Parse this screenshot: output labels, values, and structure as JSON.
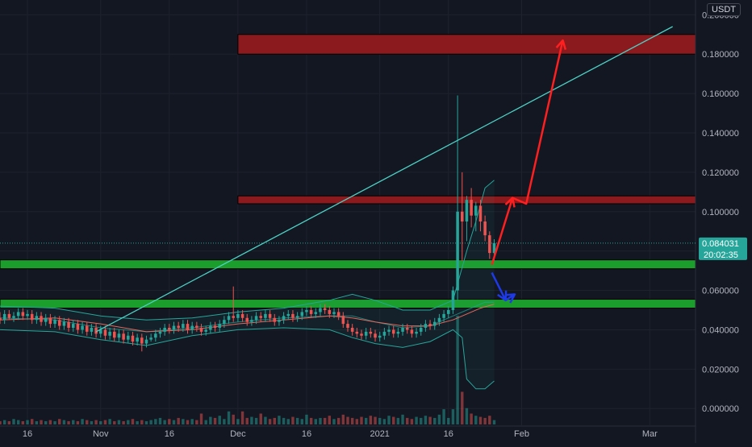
{
  "price_scale": {
    "currency": "USDT",
    "last_price": "0.084031",
    "countdown": "20:02:35",
    "last_price_bg": "#26a69a"
  },
  "colors": {
    "background": "#131722",
    "grid": "#1e222d",
    "axis_text": "#b2b5be",
    "up": "#26a69a",
    "down": "#ef5350",
    "resistance_zone": "#8b1a1f",
    "support_zone": "#1b9e2c",
    "trendline": "#4dd0c4",
    "bollinger": "#26a69a",
    "moving_average": "#e4685d",
    "forecast_up": "#ff1f1f",
    "forecast_down": "#1e3ae8"
  },
  "chart_data": {
    "type": "candlestick",
    "y_axis": {
      "ticks": [
        "0.200000",
        "0.180000",
        "0.160000",
        "0.140000",
        "0.120000",
        "0.100000",
        "0.080000",
        "0.060000",
        "0.040000",
        "0.020000",
        "0.000000"
      ],
      "tick_values": [
        0.2,
        0.18,
        0.16,
        0.14,
        0.12,
        0.1,
        0.08,
        0.06,
        0.04,
        0.02,
        0.0
      ],
      "range": [
        -0.0085,
        0.2075
      ]
    },
    "x_axis": {
      "ticks": [
        "16",
        "Nov",
        "16",
        "Dec",
        "16",
        "2021",
        "16",
        "Feb",
        "Mar"
      ],
      "tick_days": [
        -16,
        0,
        15,
        30,
        45,
        61,
        76,
        92,
        120
      ],
      "range_days": [
        -22,
        130
      ]
    },
    "grid": true,
    "candles": {
      "first_day": -22,
      "open": [
        0.046,
        0.045,
        0.048,
        0.046,
        0.047,
        0.049,
        0.047,
        0.048,
        0.045,
        0.047,
        0.044,
        0.046,
        0.043,
        0.045,
        0.042,
        0.044,
        0.041,
        0.043,
        0.04,
        0.042,
        0.039,
        0.041,
        0.038,
        0.04,
        0.037,
        0.039,
        0.036,
        0.038,
        0.035,
        0.037,
        0.034,
        0.036,
        0.033,
        0.035,
        0.036,
        0.038,
        0.039,
        0.041,
        0.04,
        0.042,
        0.041,
        0.043,
        0.04,
        0.042,
        0.041,
        0.039,
        0.04,
        0.042,
        0.041,
        0.043,
        0.045,
        0.047,
        0.046,
        0.048,
        0.046,
        0.044,
        0.045,
        0.047,
        0.046,
        0.048,
        0.046,
        0.044,
        0.045,
        0.047,
        0.048,
        0.046,
        0.047,
        0.049,
        0.05,
        0.048,
        0.049,
        0.051,
        0.05,
        0.048,
        0.049,
        0.047,
        0.043,
        0.041,
        0.039,
        0.038,
        0.037,
        0.039,
        0.038,
        0.036,
        0.037,
        0.039,
        0.04,
        0.038,
        0.039,
        0.041,
        0.04,
        0.038,
        0.039,
        0.041,
        0.043,
        0.042,
        0.044,
        0.046,
        0.048,
        0.05,
        0.06,
        0.1,
        0.095,
        0.106,
        0.098,
        0.103,
        0.095,
        0.088,
        0.079
      ],
      "close": [
        0.045,
        0.048,
        0.046,
        0.047,
        0.049,
        0.047,
        0.048,
        0.045,
        0.047,
        0.044,
        0.046,
        0.043,
        0.045,
        0.042,
        0.044,
        0.041,
        0.043,
        0.04,
        0.042,
        0.039,
        0.041,
        0.038,
        0.04,
        0.037,
        0.039,
        0.036,
        0.038,
        0.035,
        0.037,
        0.034,
        0.036,
        0.033,
        0.035,
        0.036,
        0.038,
        0.039,
        0.041,
        0.04,
        0.042,
        0.041,
        0.043,
        0.04,
        0.042,
        0.041,
        0.039,
        0.04,
        0.042,
        0.041,
        0.043,
        0.045,
        0.047,
        0.046,
        0.048,
        0.046,
        0.044,
        0.045,
        0.047,
        0.046,
        0.048,
        0.046,
        0.044,
        0.045,
        0.047,
        0.048,
        0.046,
        0.047,
        0.049,
        0.05,
        0.048,
        0.049,
        0.051,
        0.05,
        0.048,
        0.049,
        0.047,
        0.043,
        0.041,
        0.039,
        0.038,
        0.037,
        0.039,
        0.038,
        0.036,
        0.037,
        0.039,
        0.04,
        0.038,
        0.039,
        0.041,
        0.04,
        0.038,
        0.039,
        0.041,
        0.043,
        0.042,
        0.044,
        0.046,
        0.048,
        0.05,
        0.06,
        0.1,
        0.095,
        0.106,
        0.098,
        0.103,
        0.095,
        0.088,
        0.079,
        0.084
      ],
      "high": [
        0.049,
        0.05,
        0.05,
        0.049,
        0.051,
        0.051,
        0.05,
        0.05,
        0.049,
        0.049,
        0.048,
        0.048,
        0.047,
        0.047,
        0.046,
        0.046,
        0.045,
        0.045,
        0.044,
        0.044,
        0.043,
        0.043,
        0.042,
        0.042,
        0.041,
        0.041,
        0.04,
        0.04,
        0.039,
        0.039,
        0.038,
        0.038,
        0.037,
        0.038,
        0.04,
        0.041,
        0.043,
        0.043,
        0.044,
        0.044,
        0.045,
        0.045,
        0.044,
        0.044,
        0.043,
        0.042,
        0.044,
        0.044,
        0.045,
        0.047,
        0.049,
        0.062,
        0.05,
        0.05,
        0.048,
        0.047,
        0.049,
        0.049,
        0.05,
        0.05,
        0.048,
        0.047,
        0.049,
        0.05,
        0.05,
        0.049,
        0.051,
        0.052,
        0.052,
        0.051,
        0.053,
        0.053,
        0.052,
        0.051,
        0.051,
        0.049,
        0.045,
        0.043,
        0.041,
        0.04,
        0.041,
        0.041,
        0.04,
        0.039,
        0.041,
        0.042,
        0.042,
        0.041,
        0.043,
        0.043,
        0.042,
        0.041,
        0.043,
        0.045,
        0.045,
        0.046,
        0.048,
        0.05,
        0.052,
        0.062,
        0.159,
        0.12,
        0.108,
        0.112,
        0.105,
        0.106,
        0.098,
        0.09,
        0.086
      ],
      "low": [
        0.043,
        0.043,
        0.045,
        0.044,
        0.045,
        0.045,
        0.045,
        0.043,
        0.043,
        0.042,
        0.042,
        0.041,
        0.041,
        0.04,
        0.04,
        0.039,
        0.039,
        0.038,
        0.038,
        0.037,
        0.037,
        0.036,
        0.036,
        0.035,
        0.035,
        0.034,
        0.034,
        0.033,
        0.033,
        0.032,
        0.032,
        0.029,
        0.031,
        0.034,
        0.034,
        0.036,
        0.037,
        0.038,
        0.038,
        0.039,
        0.039,
        0.038,
        0.038,
        0.039,
        0.037,
        0.037,
        0.038,
        0.039,
        0.039,
        0.041,
        0.043,
        0.044,
        0.044,
        0.044,
        0.042,
        0.042,
        0.043,
        0.044,
        0.044,
        0.044,
        0.042,
        0.042,
        0.043,
        0.045,
        0.044,
        0.044,
        0.045,
        0.047,
        0.046,
        0.046,
        0.047,
        0.048,
        0.046,
        0.046,
        0.045,
        0.041,
        0.039,
        0.037,
        0.036,
        0.035,
        0.035,
        0.036,
        0.034,
        0.034,
        0.035,
        0.037,
        0.036,
        0.036,
        0.037,
        0.038,
        0.036,
        0.036,
        0.037,
        0.039,
        0.04,
        0.04,
        0.042,
        0.044,
        0.046,
        0.048,
        0.055,
        0.075,
        0.085,
        0.092,
        0.09,
        0.09,
        0.085,
        0.076,
        0.075
      ],
      "volume": [
        3,
        4,
        3,
        5,
        4,
        3,
        4,
        5,
        3,
        4,
        3,
        4,
        3,
        5,
        4,
        3,
        4,
        3,
        5,
        4,
        3,
        4,
        3,
        4,
        5,
        3,
        4,
        3,
        4,
        5,
        3,
        4,
        3,
        4,
        5,
        6,
        4,
        5,
        4,
        6,
        5,
        4,
        5,
        4,
        10,
        4,
        7,
        6,
        8,
        5,
        12,
        9,
        5,
        12,
        6,
        7,
        6,
        10,
        7,
        5,
        6,
        8,
        6,
        5,
        7,
        6,
        5,
        9,
        6,
        5,
        6,
        6,
        8,
        5,
        6,
        9,
        7,
        6,
        5,
        7,
        6,
        8,
        7,
        6,
        5,
        8,
        7,
        6,
        9,
        6,
        5,
        7,
        6,
        8,
        7,
        6,
        9,
        14,
        6,
        14,
        100,
        30,
        15,
        10,
        8,
        7,
        6,
        8,
        4
      ]
    },
    "bollinger_bands": {
      "upper": [
        [
          -22,
          0.052
        ],
        [
          -10,
          0.051
        ],
        [
          0,
          0.047
        ],
        [
          10,
          0.045
        ],
        [
          20,
          0.046
        ],
        [
          30,
          0.049
        ],
        [
          40,
          0.051
        ],
        [
          50,
          0.055
        ],
        [
          55,
          0.058
        ],
        [
          60,
          0.055
        ],
        [
          66,
          0.05
        ],
        [
          72,
          0.05
        ],
        [
          77,
          0.055
        ],
        [
          80,
          0.08
        ],
        [
          82,
          0.095
        ],
        [
          84,
          0.112
        ],
        [
          86,
          0.116
        ]
      ],
      "lower": [
        [
          -22,
          0.04
        ],
        [
          -10,
          0.039
        ],
        [
          0,
          0.035
        ],
        [
          10,
          0.032
        ],
        [
          20,
          0.037
        ],
        [
          30,
          0.04
        ],
        [
          40,
          0.041
        ],
        [
          50,
          0.04
        ],
        [
          55,
          0.036
        ],
        [
          60,
          0.033
        ],
        [
          66,
          0.031
        ],
        [
          72,
          0.034
        ],
        [
          77,
          0.04
        ],
        [
          79,
          0.036
        ],
        [
          80,
          0.015
        ],
        [
          82,
          0.01
        ],
        [
          84,
          0.01
        ],
        [
          86,
          0.014
        ]
      ],
      "middle": [
        [
          -22,
          0.046
        ],
        [
          -10,
          0.045
        ],
        [
          0,
          0.041
        ],
        [
          10,
          0.039
        ],
        [
          20,
          0.041
        ],
        [
          30,
          0.044
        ],
        [
          40,
          0.046
        ],
        [
          50,
          0.047
        ],
        [
          55,
          0.047
        ],
        [
          60,
          0.044
        ],
        [
          66,
          0.041
        ],
        [
          72,
          0.042
        ],
        [
          77,
          0.047
        ],
        [
          80,
          0.05
        ],
        [
          82,
          0.052
        ],
        [
          84,
          0.054
        ],
        [
          86,
          0.054
        ]
      ]
    },
    "moving_average": [
      [
        -22,
        0.045
      ],
      [
        -10,
        0.046
      ],
      [
        0,
        0.043
      ],
      [
        10,
        0.039
      ],
      [
        20,
        0.04
      ],
      [
        30,
        0.043
      ],
      [
        40,
        0.045
      ],
      [
        50,
        0.047
      ],
      [
        55,
        0.046
      ],
      [
        60,
        0.044
      ],
      [
        66,
        0.042
      ],
      [
        72,
        0.042
      ],
      [
        77,
        0.045
      ],
      [
        80,
        0.048
      ],
      [
        83,
        0.051
      ],
      [
        86,
        0.053
      ]
    ],
    "zones": [
      {
        "kind": "resistance",
        "x0": 30,
        "x1": 130,
        "y0": 0.18,
        "y1": 0.19
      },
      {
        "kind": "resistance",
        "x0": 30,
        "x1": 130,
        "y0": 0.104,
        "y1": 0.108
      },
      {
        "kind": "support",
        "x0": -22,
        "x1": 130,
        "y0": 0.071,
        "y1": 0.0755
      },
      {
        "kind": "support",
        "x0": -22,
        "x1": 130,
        "y0": 0.051,
        "y1": 0.0555
      }
    ],
    "trendline": [
      [
        -1,
        0.039
      ],
      [
        125,
        0.194
      ]
    ],
    "forecast_up": [
      [
        85.5,
        0.073
      ],
      [
        90,
        0.107
      ],
      [
        93,
        0.104
      ],
      [
        101,
        0.187
      ]
    ],
    "forecast_down": [
      [
        85.5,
        0.069
      ],
      [
        88.5,
        0.055
      ],
      [
        90.5,
        0.058
      ]
    ]
  },
  "axis_names": {
    "y_tick_prefix": "y-tick",
    "x_tick_prefix": "x-tick"
  }
}
